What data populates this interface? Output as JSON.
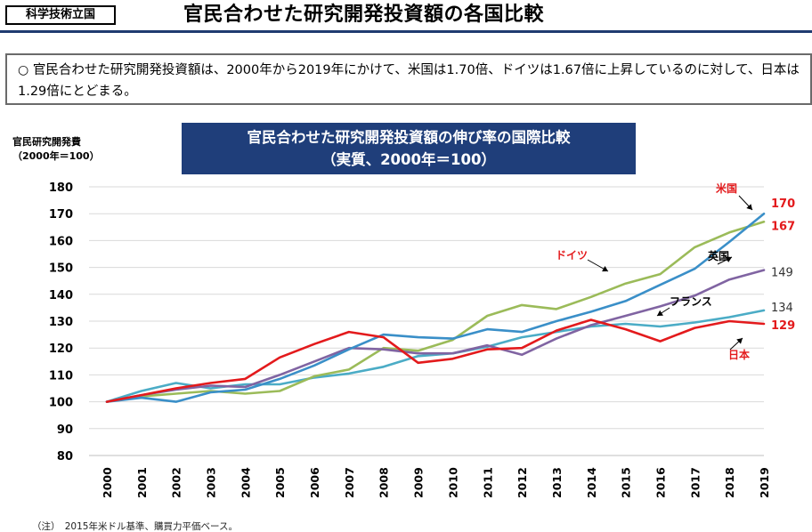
{
  "header": {
    "section_tag": "科学技術立国",
    "title": "官民合わせた研究開発投資額の各国比較"
  },
  "summary": {
    "bullet": "○",
    "text": "官民合わせた研究開発投資額は、2000年から2019年にかけて、米国は1.70倍、ドイツは1.67倍に上昇しているのに対して、日本は1.29倍にとどまる。"
  },
  "chart_banner": {
    "line1": "官民合わせた研究開発投資額の伸び率の国際比較",
    "line2": "（実質、2000年＝100）"
  },
  "unit_label": {
    "line1": "官民研究開発費",
    "line2": "（2000年＝100）"
  },
  "footnote": "（注）　2015年米ドル基準、購買力平価ベース。",
  "colors": {
    "米国": "#3a8fc8",
    "ドイツ": "#9bbb59",
    "英国": "#8064a2",
    "フランス": "#4bacc6",
    "日本": "#e31a1c",
    "red_label": "#e31a1c",
    "banner": "#1f3e7a"
  },
  "chart_data": {
    "type": "line",
    "title": "官民合わせた研究開発投資額の伸び率の国際比較（実質、2000年＝100）",
    "ylabel": "官民研究開発費（2000年＝100）",
    "xlabel": "",
    "ylim": [
      80,
      180
    ],
    "yticks": [
      80,
      90,
      100,
      110,
      120,
      130,
      140,
      150,
      160,
      170,
      180
    ],
    "grid": true,
    "x": [
      "2000",
      "2001",
      "2002",
      "2003",
      "2004",
      "2005",
      "2006",
      "2007",
      "2008",
      "2009",
      "2010",
      "2011",
      "2012",
      "2013",
      "2014",
      "2015",
      "2016",
      "2017",
      "2018",
      "2019"
    ],
    "series": [
      {
        "name": "米国",
        "values": [
          100,
          101.5,
          100,
          103.5,
          104.5,
          108.5,
          113.5,
          119.5,
          125,
          124,
          123.5,
          127,
          126,
          130,
          133.5,
          137.5,
          143.5,
          149.5,
          159.5,
          170
        ],
        "end_label": "170"
      },
      {
        "name": "ドイツ",
        "values": [
          100,
          102,
          103,
          104,
          103,
          104,
          109.5,
          112,
          120,
          119,
          123,
          132,
          136,
          134.5,
          139,
          144,
          147.5,
          157.5,
          163,
          167
        ],
        "end_label": "167"
      },
      {
        "name": "英国",
        "values": [
          100,
          102.5,
          104.5,
          106,
          105.5,
          110,
          115,
          120,
          119.5,
          118,
          118,
          121,
          117.5,
          123.5,
          128.5,
          132,
          135.5,
          139.5,
          145.5,
          149
        ],
        "end_label": "149"
      },
      {
        "name": "フランス",
        "values": [
          100,
          104,
          107,
          105,
          106.5,
          106.5,
          109,
          110.5,
          113,
          117,
          118,
          120.5,
          124,
          126,
          128,
          129,
          128,
          129.5,
          131.5,
          134
        ],
        "end_label": "134"
      },
      {
        "name": "日本",
        "values": [
          100,
          102.5,
          105,
          107,
          108.5,
          116.5,
          121.5,
          126,
          124,
          114.5,
          116,
          119.5,
          120,
          126.5,
          130.5,
          127,
          122.5,
          127.5,
          130,
          129
        ],
        "end_label": "129"
      }
    ]
  }
}
